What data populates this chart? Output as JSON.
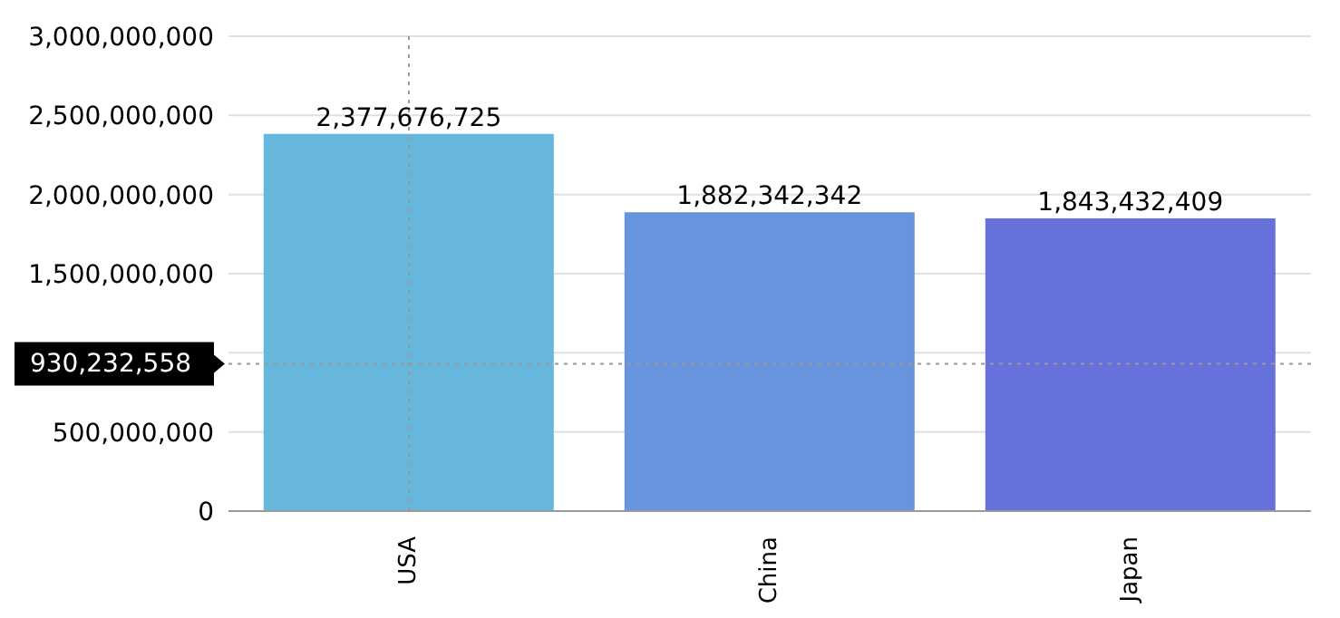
{
  "chart_data": {
    "type": "bar",
    "categories": [
      "USA",
      "China",
      "Japan"
    ],
    "values": [
      2377676725,
      1882342342,
      1843432409
    ],
    "colors": [
      "#67b7dc",
      "#6794dc",
      "#6771dc"
    ],
    "ylim": [
      0,
      3000000000
    ],
    "yticks": [
      0,
      {
        "value": 500000000,
        "label": "500,000,000"
      },
      {
        "value": 1000000000,
        "label": null
      },
      {
        "value": 1500000000,
        "label": "1,500,000,000"
      },
      {
        "value": 2000000000,
        "label": "2,000,000,000"
      },
      {
        "value": 2500000000,
        "label": "2,500,000,000"
      },
      {
        "value": 3000000000,
        "label": "3,000,000,000"
      }
    ],
    "grid": "y",
    "value_labels": [
      "2,377,676,725",
      "1,882,342,342",
      "1,843,432,409"
    ],
    "ref_lines": [
      {
        "axis": "y",
        "value": 930232558,
        "label": "930,232,558",
        "color": "#999999",
        "line_style": "dotted"
      },
      {
        "axis": "x",
        "value": "USA",
        "color": "#999999",
        "line_style": "dotted"
      }
    ]
  }
}
